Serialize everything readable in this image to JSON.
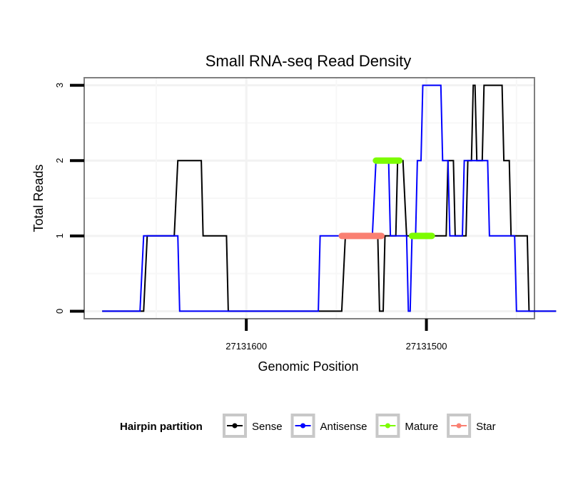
{
  "chart_data": {
    "type": "line",
    "title": "Small RNA-seq Read Density",
    "xlabel": "Genomic Position",
    "ylabel": "Total Reads",
    "x_reversed": true,
    "xlim": [
      27131690,
      27131440
    ],
    "ylim": [
      -0.1,
      3.1
    ],
    "x_ticks": [
      27131600,
      27131500
    ],
    "x_tick_labels": [
      "27131600",
      "27131500"
    ],
    "y_ticks": [
      0,
      1,
      2,
      3
    ],
    "y_tick_labels": [
      "0",
      "1",
      "2",
      "3"
    ],
    "grid": true,
    "series": [
      {
        "name": "Sense",
        "color": "#000000",
        "x": [
          27131680,
          27131657,
          27131655,
          27131640,
          27131638,
          27131625,
          27131624,
          27131611,
          27131610,
          27131547,
          27131545,
          27131527,
          27131526,
          27131524,
          27131523,
          27131517,
          27131516,
          27131513,
          27131511,
          27131489,
          27131488,
          27131485,
          27131484,
          27131478,
          27131477,
          27131475,
          27131474,
          27131473,
          27131472,
          27131469,
          27131468,
          27131458,
          27131457,
          27131454,
          27131453,
          27131444,
          27131443,
          27131428
        ],
        "y": [
          0,
          0,
          1,
          1,
          2,
          2,
          1,
          1,
          0,
          0,
          1,
          1,
          0,
          0,
          1,
          1,
          2,
          2,
          1,
          1,
          2,
          2,
          1,
          1,
          2,
          2,
          3,
          3,
          2,
          2,
          3,
          3,
          2,
          2,
          1,
          1,
          0,
          0
        ]
      },
      {
        "name": "Antisense",
        "color": "#0000ff",
        "x": [
          27131680,
          27131659,
          27131657,
          27131638,
          27131637,
          27131560,
          27131559,
          27131530,
          27131528,
          27131521,
          27131520,
          27131511,
          27131510,
          27131509,
          27131508,
          27131506,
          27131505,
          27131503,
          27131502,
          27131492,
          27131491,
          27131488,
          27131487,
          27131480,
          27131479,
          27131466,
          27131465,
          27131451,
          27131450,
          27131428
        ],
        "y": [
          0,
          0,
          1,
          1,
          0,
          0,
          1,
          1,
          2,
          2,
          1,
          1,
          0,
          0,
          1,
          1,
          2,
          2,
          3,
          3,
          2,
          2,
          1,
          1,
          2,
          2,
          1,
          1,
          0,
          0
        ]
      },
      {
        "name": "Mature",
        "color": "#7cfc00",
        "segments": [
          {
            "x": [
              27131528,
              27131515
            ],
            "y": 2
          },
          {
            "x": [
              27131508,
              27131497
            ],
            "y": 1
          }
        ]
      },
      {
        "name": "Star",
        "color": "#fa8072",
        "segments": [
          {
            "x": [
              27131547,
              27131525
            ],
            "y": 1
          }
        ]
      }
    ],
    "legend": {
      "title": "Hairpin partition",
      "position": "bottom",
      "entries": [
        {
          "label": "Sense",
          "color": "#000000"
        },
        {
          "label": "Antisense",
          "color": "#0000ff"
        },
        {
          "label": "Mature",
          "color": "#7cfc00"
        },
        {
          "label": "Star",
          "color": "#fa8072"
        }
      ]
    }
  }
}
